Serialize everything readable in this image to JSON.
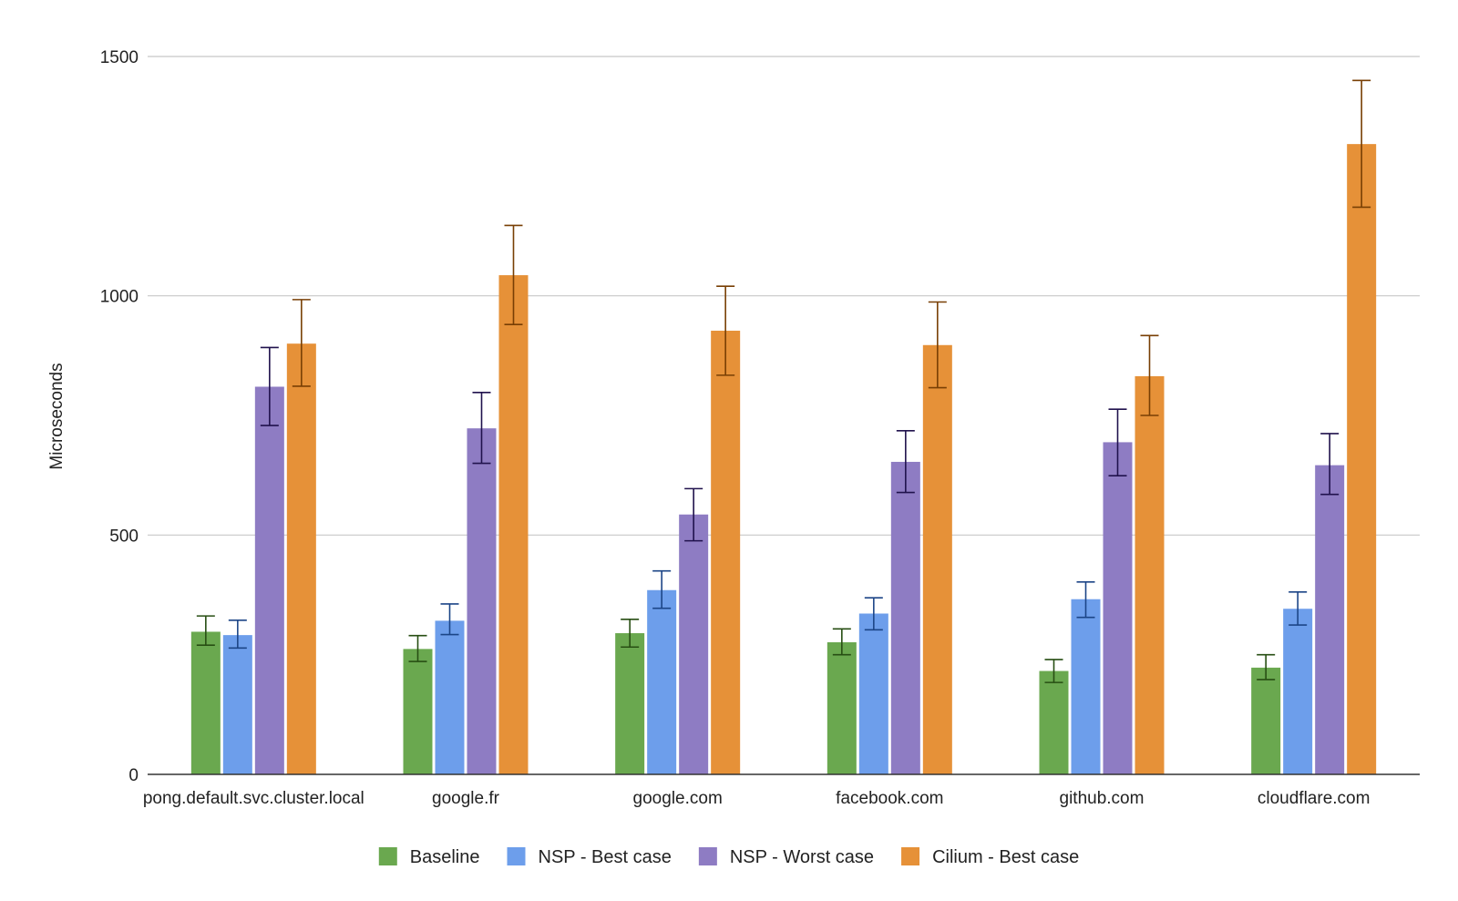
{
  "chart_data": {
    "type": "bar",
    "title": "",
    "xlabel": "",
    "ylabel": "Microseconds",
    "ylim": [
      0,
      1500
    ],
    "yticks": [
      0,
      500,
      1000,
      1500
    ],
    "grid": true,
    "legend_position": "bottom",
    "categories": [
      "pong.default.svc.cluster.local",
      "google.fr",
      "google.com",
      "facebook.com",
      "github.com",
      "cloudflare.com"
    ],
    "series": [
      {
        "name": "Baseline",
        "color": "#6aa84f",
        "error_color": "#274e13",
        "values": [
          298,
          262,
          295,
          276,
          216,
          223
        ],
        "error_low": [
          270,
          236,
          266,
          250,
          192,
          198
        ],
        "error_high": [
          331,
          290,
          324,
          304,
          240,
          250
        ]
      },
      {
        "name": "NSP - Best case",
        "color": "#6d9eeb",
        "error_color": "#1c4587",
        "values": [
          291,
          321,
          385,
          336,
          366,
          346
        ],
        "error_low": [
          264,
          292,
          347,
          302,
          328,
          312
        ],
        "error_high": [
          322,
          356,
          425,
          369,
          402,
          381
        ]
      },
      {
        "name": "NSP - Worst case",
        "color": "#8e7cc3",
        "error_color": "#20124d",
        "values": [
          810,
          723,
          543,
          653,
          694,
          646
        ],
        "error_low": [
          729,
          650,
          488,
          589,
          624,
          585
        ],
        "error_high": [
          892,
          798,
          597,
          718,
          763,
          712
        ]
      },
      {
        "name": "Cilium - Best case",
        "color": "#e69138",
        "error_color": "#783f04",
        "values": [
          900,
          1043,
          927,
          897,
          832,
          1317
        ],
        "error_low": [
          811,
          940,
          834,
          808,
          750,
          1185
        ],
        "error_high": [
          992,
          1147,
          1020,
          987,
          917,
          1450
        ]
      }
    ]
  }
}
